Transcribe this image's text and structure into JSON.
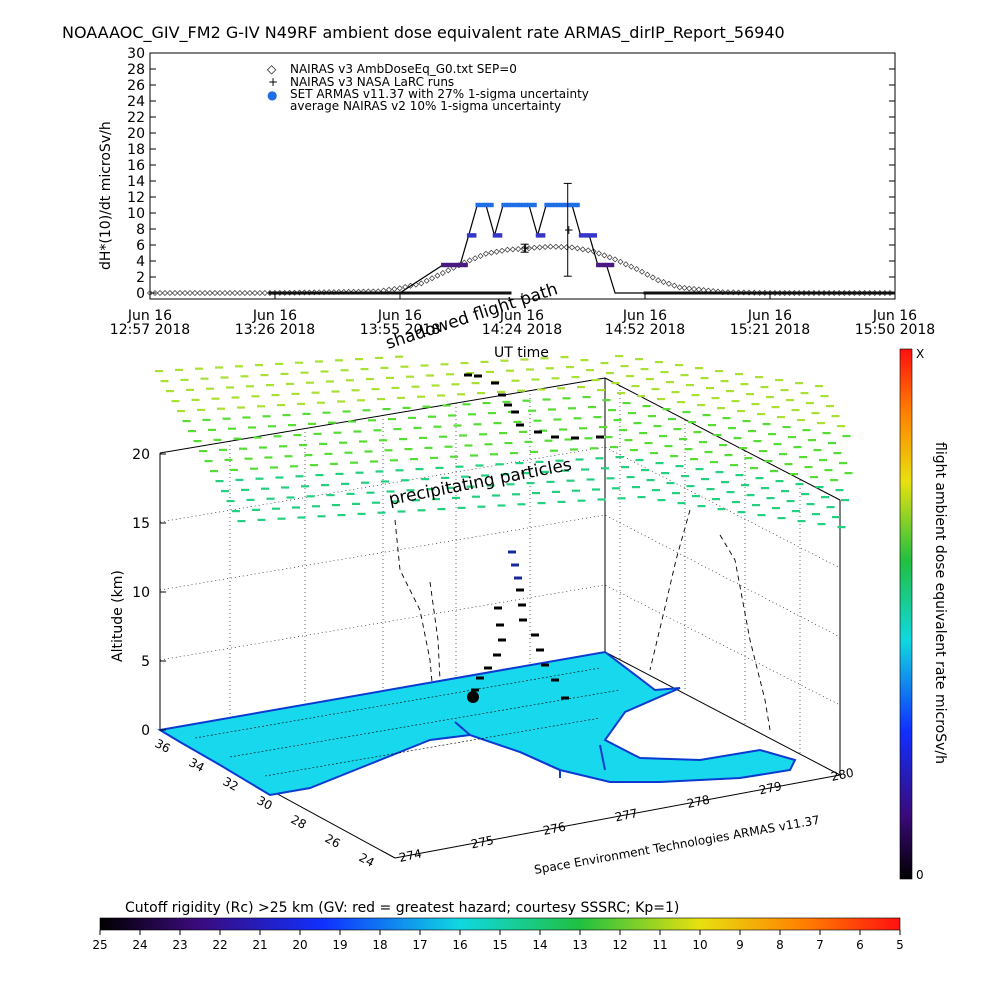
{
  "title": "NOAAAOC_GIV_FM2 G-IV   N49RF  ambient dose equivalent rate ARMAS_dirIP_Report_56940",
  "top_chart": {
    "ylabel": "dH*(10)/dt microSv/h",
    "xlabel": "UT time",
    "yticks": [
      "0",
      "2",
      "4",
      "6",
      "8",
      "10",
      "12",
      "14",
      "16",
      "18",
      "20",
      "22",
      "24",
      "26",
      "28",
      "30"
    ],
    "xticks": [
      {
        "line1": "Jun 16",
        "line2": "12:57 2018"
      },
      {
        "line1": "Jun 16",
        "line2": "13:26 2018"
      },
      {
        "line1": "Jun 16",
        "line2": "13:55 2018"
      },
      {
        "line1": "Jun 16",
        "line2": "14:24 2018"
      },
      {
        "line1": "Jun 16",
        "line2": "14:52 2018"
      },
      {
        "line1": "Jun 16",
        "line2": "15:21 2018"
      },
      {
        "line1": "Jun 16",
        "line2": "15:50 2018"
      }
    ],
    "legend": [
      {
        "symbol": "◇",
        "text": "NAIRAS v3 AmbDoseEq_G0.txt SEP=0"
      },
      {
        "symbol": "+",
        "text": "NAIRAS v3 NASA LaRC runs"
      },
      {
        "symbol": "●",
        "text": "SET ARMAS v11.37 with 27% 1-sigma uncertainty"
      },
      {
        "symbol": "",
        "text": "average NAIRAS v2 10% 1-sigma uncertainty"
      }
    ]
  },
  "chart_data": [
    {
      "type": "scatter",
      "title": "NOAAAOC_GIV_FM2 G-IV   N49RF  ambient dose equivalent rate ARMAS_dirIP_Report_56940",
      "xlabel": "UT time",
      "ylabel": "dH*(10)/dt microSv/h",
      "ylim": [
        0,
        30
      ],
      "xlim": [
        "2018-06-16 12:57",
        "2018-06-16 15:50"
      ],
      "series": [
        {
          "name": "SET ARMAS v11.37 with 27% 1-sigma uncertainty",
          "color": "#1e6ee6",
          "x": [
            "13:26",
            "13:40",
            "13:55",
            "14:05",
            "14:09",
            "14:11",
            "14:13",
            "14:15",
            "14:17",
            "14:19",
            "14:21",
            "14:23",
            "14:25",
            "14:27",
            "14:29",
            "14:31",
            "14:33",
            "14:35",
            "14:37",
            "14:39",
            "14:41",
            "14:43",
            "14:45",
            "14:47",
            "14:50",
            "14:55",
            "15:10",
            "15:30",
            "15:50"
          ],
          "y": [
            0,
            0,
            0,
            3.5,
            3.5,
            7.2,
            11,
            11,
            7.2,
            11,
            11,
            11,
            11,
            7.2,
            11,
            11,
            11,
            11,
            7.2,
            7.2,
            3.5,
            3.5,
            0,
            0,
            0,
            0,
            0,
            0,
            0
          ]
        },
        {
          "name": "NAIRAS v3 AmbDoseEq_G0.txt SEP=0",
          "color": "#000000",
          "x": [
            "12:57",
            "13:26",
            "13:50",
            "13:55",
            "14:00",
            "14:05",
            "14:10",
            "14:15",
            "14:20",
            "14:25",
            "14:30",
            "14:35",
            "14:40",
            "14:45",
            "14:50",
            "14:55",
            "15:00",
            "15:10",
            "15:21",
            "15:30",
            "15:50"
          ],
          "y": [
            0,
            0,
            0.2,
            0.6,
            1.2,
            2.5,
            3.8,
            4.9,
            5.4,
            5.6,
            5.8,
            5.7,
            5.2,
            4.2,
            3.0,
            1.6,
            0.7,
            0.1,
            0,
            0,
            0
          ]
        },
        {
          "name": "NAIRAS v3 NASA LaRC runs",
          "color": "#000000",
          "x": [
            "14:24",
            "14:34"
          ],
          "y": [
            5.6,
            7.9
          ],
          "err": [
            0.5,
            5.8
          ]
        }
      ]
    },
    {
      "type": "scatter3d",
      "zlabel": "Altitude (km)",
      "zticks": [
        "0",
        "5",
        "10",
        "15",
        "20"
      ],
      "lat_ticks": [
        "24",
        "26",
        "28",
        "30",
        "32",
        "34",
        "36"
      ],
      "lon_ticks": [
        "274",
        "275",
        "276",
        "277",
        "278",
        "279",
        "280"
      ],
      "annotations": [
        "shadowed flight path",
        "precipitating particles",
        "Space Environment Technologies ARMAS v11.37"
      ]
    }
  ],
  "colorbar": {
    "label": "flight ambient dose equivalent rate microSv/h",
    "top_label": "X",
    "bottom_label": "0"
  },
  "rigidity": {
    "label": "Cutoff rigidity (Rc) >25 km (GV: red = greatest hazard; courtesy SSSRC; Kp=1)",
    "ticks": [
      "25",
      "24",
      "23",
      "22",
      "21",
      "20",
      "19",
      "18",
      "17",
      "16",
      "15",
      "14",
      "13",
      "12",
      "11",
      "10",
      "9",
      "8",
      "7",
      "6",
      "5"
    ]
  },
  "colors": {
    "armas": "#1e6ee6",
    "armas_low": "#4b1a80",
    "land": "#18d8ee",
    "coast": "#0a3ad0",
    "particles": "#55dd33"
  }
}
